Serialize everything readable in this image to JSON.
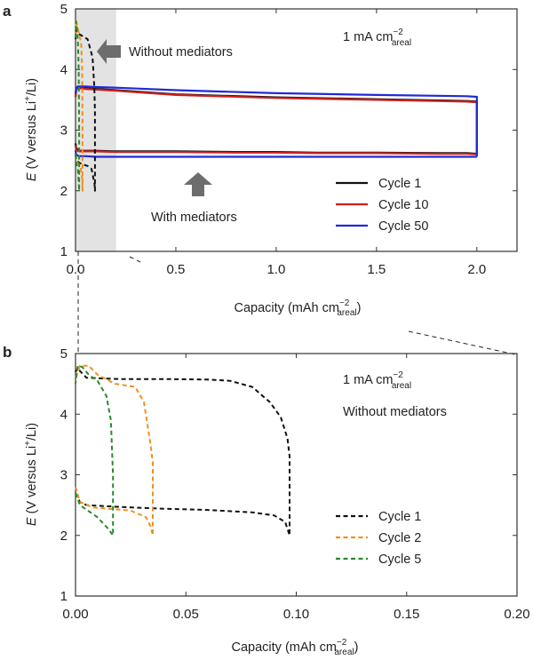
{
  "figure": {
    "background": "#ffffff",
    "axis_color": "#333333"
  },
  "panels": {
    "a": {
      "label": "a",
      "rate_text": "1 mA cm",
      "rate_sup": "−2",
      "rate_sub": "areal",
      "ann_without": "Without mediators",
      "ann_with": "With mediators"
    },
    "b": {
      "label": "b",
      "rate_text": "1 mA cm",
      "rate_sup": "−2",
      "rate_sub": "areal",
      "ann_without": "Without mediators"
    }
  },
  "chart_data": [
    {
      "id": "a",
      "type": "line",
      "title": "",
      "xlabel": "Capacity (mAh cm",
      "xlabel_sup": "−2",
      "xlabel_sub": "areal",
      "xlabel_close": ")",
      "ylabel_prefix": "E",
      "ylabel_text": " (V versus Li",
      "ylabel_sup": "+",
      "ylabel_close": "/Li)",
      "xlim": [
        0,
        2.2
      ],
      "ylim": [
        1,
        5
      ],
      "xticks": [
        0.0,
        0.5,
        1.0,
        1.5,
        2.0
      ],
      "xtick_labels": [
        "0.0",
        "0.5",
        "1.0",
        "1.5",
        "2.0"
      ],
      "yticks": [
        1,
        2,
        3,
        4,
        5
      ],
      "ytick_labels": [
        "1",
        "2",
        "3",
        "4",
        "5"
      ],
      "shaded_region": {
        "x": [
          0,
          0.2
        ],
        "color": "#e3e3e3"
      },
      "legend_position": "bottom-right",
      "series": [
        {
          "name": "Cycle 1",
          "color": "#111111",
          "dash": "solid",
          "x": [
            0,
            0.003,
            0.01,
            0.02,
            0.05,
            0.1,
            0.2,
            0.5,
            0.8,
            1.0,
            1.2,
            1.5,
            1.8,
            1.95,
            2.0
          ],
          "y": [
            2.78,
            2.71,
            2.68,
            2.66,
            2.66,
            2.66,
            2.65,
            2.65,
            2.64,
            2.64,
            2.63,
            2.63,
            2.62,
            2.62,
            2.61
          ]
        },
        {
          "name": "Cycle 1",
          "color": "#111111",
          "dash": "solid",
          "x": [
            2.0,
            2.0,
            1.95,
            1.5,
            1.0,
            0.5,
            0.2,
            0.1,
            0.05,
            0.02,
            0.01,
            0.003,
            0
          ],
          "y": [
            2.61,
            3.47,
            3.48,
            3.51,
            3.54,
            3.59,
            3.66,
            3.68,
            3.69,
            3.7,
            3.7,
            3.67,
            3.55
          ]
        },
        {
          "name": "Cycle 10",
          "color": "#cc2020",
          "dash": "solid",
          "x": [
            0,
            0.003,
            0.01,
            0.02,
            0.05,
            0.1,
            0.2,
            0.5,
            0.8,
            1.0,
            1.2,
            1.5,
            1.8,
            1.95,
            2.0
          ],
          "y": [
            2.75,
            2.68,
            2.66,
            2.65,
            2.65,
            2.65,
            2.64,
            2.64,
            2.63,
            2.63,
            2.62,
            2.62,
            2.61,
            2.61,
            2.6
          ]
        },
        {
          "name": "Cycle 10",
          "color": "#cc2020",
          "dash": "solid",
          "x": [
            2.0,
            2.0,
            1.95,
            1.5,
            1.0,
            0.5,
            0.2,
            0.1,
            0.05,
            0.02,
            0.01,
            0.003,
            0
          ],
          "y": [
            2.6,
            3.46,
            3.47,
            3.5,
            3.53,
            3.58,
            3.65,
            3.67,
            3.68,
            3.69,
            3.69,
            3.66,
            3.55
          ]
        },
        {
          "name": "Cycle 50",
          "color": "#1f2ad6",
          "dash": "solid",
          "x": [
            0,
            0.003,
            0.01,
            0.02,
            0.05,
            0.1,
            0.2,
            0.5,
            0.8,
            1.0,
            1.2,
            1.5,
            1.8,
            1.95,
            2.0
          ],
          "y": [
            2.66,
            2.6,
            2.58,
            2.57,
            2.57,
            2.56,
            2.56,
            2.56,
            2.56,
            2.56,
            2.56,
            2.56,
            2.56,
            2.56,
            2.56
          ]
        },
        {
          "name": "Cycle 50",
          "color": "#1f2ad6",
          "dash": "solid",
          "x": [
            2.0,
            2.0,
            1.95,
            1.5,
            1.0,
            0.5,
            0.2,
            0.1,
            0.05,
            0.02,
            0.01,
            0.003,
            0
          ],
          "y": [
            2.56,
            3.55,
            3.56,
            3.58,
            3.61,
            3.66,
            3.7,
            3.71,
            3.72,
            3.72,
            3.72,
            3.69,
            3.6
          ]
        },
        {
          "name": "Cycle 1 (without mediators)",
          "color": "#111111",
          "dash": "dashed",
          "x": [
            0,
            0.005,
            0.02,
            0.04,
            0.06,
            0.08,
            0.095,
            0.097,
            0.097,
            0.094,
            0.085,
            0.06,
            0.03,
            0.01,
            0.003,
            0
          ],
          "y": [
            2.6,
            2.5,
            2.46,
            2.43,
            2.41,
            2.36,
            2.1,
            2.0,
            3.3,
            3.7,
            4.2,
            4.5,
            4.56,
            4.6,
            4.65,
            4.5
          ]
        },
        {
          "name": "Cycle 2 (without mediators)",
          "color": "#f0901e",
          "dash": "dashed",
          "x": [
            0,
            0.005,
            0.015,
            0.025,
            0.033,
            0.035,
            0.035,
            0.033,
            0.028,
            0.02,
            0.01,
            0.003,
            0
          ],
          "y": [
            2.6,
            2.48,
            2.45,
            2.4,
            2.2,
            2.0,
            3.1,
            4.0,
            4.45,
            4.55,
            4.7,
            4.8,
            4.6
          ]
        },
        {
          "name": "Cycle 5 (without mediators)",
          "color": "#2a8a2a",
          "dash": "dashed",
          "x": [
            0,
            0.005,
            0.012,
            0.017,
            0.018,
            0.018,
            0.016,
            0.012,
            0.007,
            0.002,
            0
          ],
          "y": [
            2.6,
            2.45,
            2.35,
            2.1,
            2.0,
            3.0,
            4.0,
            4.45,
            4.7,
            4.8,
            4.5
          ]
        }
      ],
      "legend": [
        {
          "label": "Cycle 1",
          "color": "#111111"
        },
        {
          "label": "Cycle 10",
          "color": "#cc2020"
        },
        {
          "label": "Cycle 50",
          "color": "#1f2ad6"
        }
      ]
    },
    {
      "id": "b",
      "type": "line",
      "title": "",
      "xlabel": "Capacity (mAh cm",
      "xlabel_sup": "−2",
      "xlabel_sub": "areal",
      "xlabel_close": ")",
      "ylabel_prefix": "E",
      "ylabel_text": " (V versus Li",
      "ylabel_sup": "+",
      "ylabel_close": "/Li)",
      "xlim": [
        0,
        0.2
      ],
      "ylim": [
        1,
        5
      ],
      "xticks": [
        0.0,
        0.05,
        0.1,
        0.15,
        0.2
      ],
      "xtick_labels": [
        "0.00",
        "0.05",
        "0.10",
        "0.15",
        "0.20"
      ],
      "yticks": [
        1,
        2,
        3,
        4,
        5
      ],
      "ytick_labels": [
        "1",
        "2",
        "3",
        "4",
        "5"
      ],
      "legend_position": "bottom-right",
      "series": [
        {
          "name": "Cycle 1",
          "color": "#111111",
          "dash": "dashed",
          "x": [
            0,
            0.002,
            0.005,
            0.02,
            0.04,
            0.06,
            0.08,
            0.09,
            0.095,
            0.097,
            0.097,
            0.096,
            0.093,
            0.088,
            0.08,
            0.07,
            0.06,
            0.04,
            0.02,
            0.005,
            0.001,
            0
          ],
          "y": [
            2.7,
            2.55,
            2.5,
            2.47,
            2.44,
            2.42,
            2.38,
            2.33,
            2.22,
            2.0,
            3.3,
            3.6,
            3.95,
            4.2,
            4.45,
            4.55,
            4.57,
            4.58,
            4.58,
            4.6,
            4.75,
            4.7
          ]
        },
        {
          "name": "Cycle 2",
          "color": "#f0901e",
          "dash": "dashed",
          "x": [
            0,
            0.002,
            0.008,
            0.015,
            0.025,
            0.032,
            0.034,
            0.035,
            0.035,
            0.034,
            0.031,
            0.027,
            0.018,
            0.01,
            0.006,
            0.002,
            0
          ],
          "y": [
            2.8,
            2.55,
            2.46,
            2.44,
            2.41,
            2.3,
            2.15,
            2.0,
            3.2,
            3.5,
            4.2,
            4.45,
            4.5,
            4.65,
            4.8,
            4.8,
            4.6
          ]
        },
        {
          "name": "Cycle 5",
          "color": "#2a8a2a",
          "dash": "dashed",
          "x": [
            0,
            0.002,
            0.006,
            0.01,
            0.015,
            0.017,
            0.017,
            0.016,
            0.014,
            0.01,
            0.006,
            0.003,
            0.001,
            0
          ],
          "y": [
            2.7,
            2.5,
            2.4,
            2.3,
            2.1,
            2.0,
            3.0,
            3.9,
            4.3,
            4.55,
            4.65,
            4.78,
            4.8,
            4.5
          ]
        }
      ],
      "legend": [
        {
          "label": "Cycle 1",
          "color": "#111111"
        },
        {
          "label": "Cycle 2",
          "color": "#f0901e"
        },
        {
          "label": "Cycle 5",
          "color": "#2a8a2a"
        }
      ]
    }
  ]
}
